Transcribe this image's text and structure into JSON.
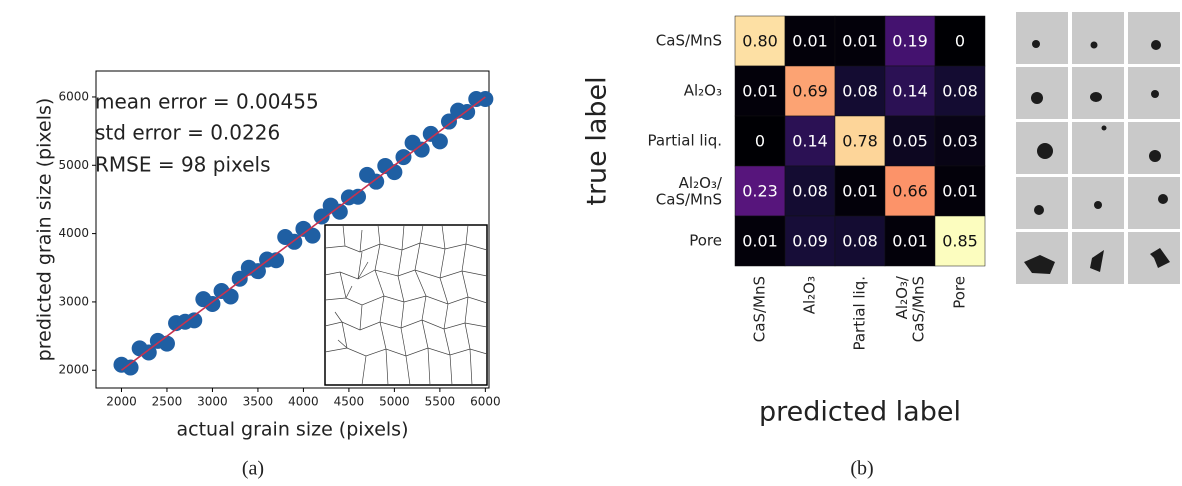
{
  "chart_data": [
    {
      "type": "scatter",
      "xlabel": "actual grain size (pixels)",
      "ylabel": "predicted grain size (pixels)",
      "annotations": [
        "mean error = 0.00455",
        "std error = 0.0226",
        "RMSE = 98 pixels"
      ],
      "caption": "(a)",
      "x": [
        2000,
        2100,
        2200,
        2300,
        2400,
        2500,
        2600,
        2700,
        2800,
        2900,
        3000,
        3100,
        3200,
        3300,
        3400,
        3500,
        3600,
        3700,
        3800,
        3900,
        4000,
        4100,
        4200,
        4300,
        4400,
        4500,
        4600,
        4700,
        4800,
        4900,
        5000,
        5100,
        5200,
        5300,
        5400,
        5500,
        5600,
        5700,
        5800,
        5900,
        6000
      ],
      "y": [
        2080,
        2040,
        2320,
        2260,
        2430,
        2390,
        2690,
        2710,
        2730,
        3040,
        2970,
        3160,
        3080,
        3340,
        3500,
        3450,
        3620,
        3610,
        3950,
        3880,
        4070,
        3970,
        4250,
        4410,
        4320,
        4530,
        4540,
        4860,
        4760,
        4990,
        4900,
        5120,
        5330,
        5230,
        5460,
        5350,
        5640,
        5800,
        5780,
        5970,
        5970
      ],
      "color": "#1f5fa3",
      "fit_line": {
        "x": [
          2000,
          6000
        ],
        "y": [
          2000,
          6000
        ],
        "color": "#c8324e"
      },
      "xlim": [
        1720,
        6040
      ],
      "ylim": [
        1740,
        6380
      ],
      "xticks": [
        2000,
        2500,
        3000,
        3500,
        4000,
        4500,
        5000,
        5500,
        6000
      ],
      "yticks": [
        2000,
        3000,
        4000,
        5000,
        6000
      ]
    },
    {
      "type": "heatmap",
      "xlabel": "predicted label",
      "ylabel": "true label",
      "caption": "(b)",
      "colormap": "magma",
      "categories": [
        "CaS/MnS",
        "Al₂O₃",
        "Partial liq.",
        "Al₂O₃/\nCaS/MnS",
        "Pore"
      ],
      "values": [
        [
          0.8,
          0.01,
          0.01,
          0.19,
          0
        ],
        [
          0.01,
          0.69,
          0.08,
          0.14,
          0.08
        ],
        [
          0,
          0.14,
          0.78,
          0.05,
          0.03
        ],
        [
          0.23,
          0.08,
          0.01,
          0.66,
          0.01
        ],
        [
          0.01,
          0.09,
          0.08,
          0.01,
          0.85
        ]
      ],
      "value_labels": [
        [
          "0.80",
          "0.01",
          "0.01",
          "0.19",
          "0"
        ],
        [
          "0.01",
          "0.69",
          "0.08",
          "0.14",
          "0.08"
        ],
        [
          "0",
          "0.14",
          "0.78",
          "0.05",
          "0.03"
        ],
        [
          "0.23",
          "0.08",
          "0.01",
          "0.66",
          "0.01"
        ],
        [
          "0.01",
          "0.09",
          "0.08",
          "0.01",
          "0.85"
        ]
      ]
    }
  ]
}
